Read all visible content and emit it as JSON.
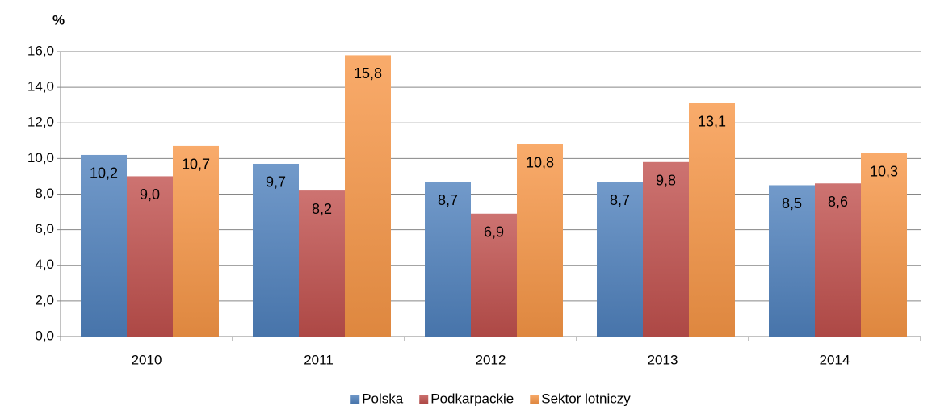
{
  "chart_data": {
    "type": "bar",
    "y_label": "%",
    "categories": [
      "2010",
      "2011",
      "2012",
      "2013",
      "2014"
    ],
    "series": [
      {
        "name": "Polska",
        "color": "#4f81bd",
        "values": [
          10.2,
          9.7,
          8.7,
          8.7,
          8.5
        ],
        "value_labels": [
          "10,2",
          "9,7",
          "8,7",
          "8,7",
          "8,5"
        ]
      },
      {
        "name": "Podkarpackie",
        "color": "#c0504d",
        "values": [
          9.0,
          8.2,
          6.9,
          9.8,
          8.6
        ],
        "value_labels": [
          "9,0",
          "8,2",
          "6,9",
          "9,8",
          "8,6"
        ]
      },
      {
        "name": "Sektor lotniczy",
        "color": "#f79646",
        "values": [
          10.7,
          15.8,
          10.8,
          13.1,
          10.3
        ],
        "value_labels": [
          "10,7",
          "15,8",
          "10,8",
          "13,1",
          "10,3"
        ]
      }
    ],
    "ylim": [
      0,
      16
    ],
    "yticks": [
      {
        "value": 0,
        "label": "0,0"
      },
      {
        "value": 2,
        "label": "2,0"
      },
      {
        "value": 4,
        "label": "4,0"
      },
      {
        "value": 6,
        "label": "6,0"
      },
      {
        "value": 8,
        "label": "8,0"
      },
      {
        "value": 10,
        "label": "10,0"
      },
      {
        "value": 12,
        "label": "12,0"
      },
      {
        "value": 14,
        "label": "14,0"
      },
      {
        "value": 16,
        "label": "16,0"
      }
    ],
    "grid": true,
    "legend": "bottom"
  }
}
